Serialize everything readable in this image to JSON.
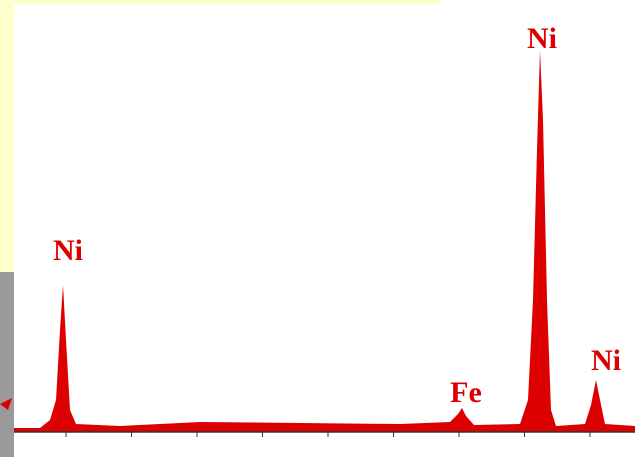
{
  "peaks": [
    {
      "label": "Ni"
    },
    {
      "label": "Ni"
    },
    {
      "label": "Fe"
    },
    {
      "label": "Ni"
    }
  ]
}
